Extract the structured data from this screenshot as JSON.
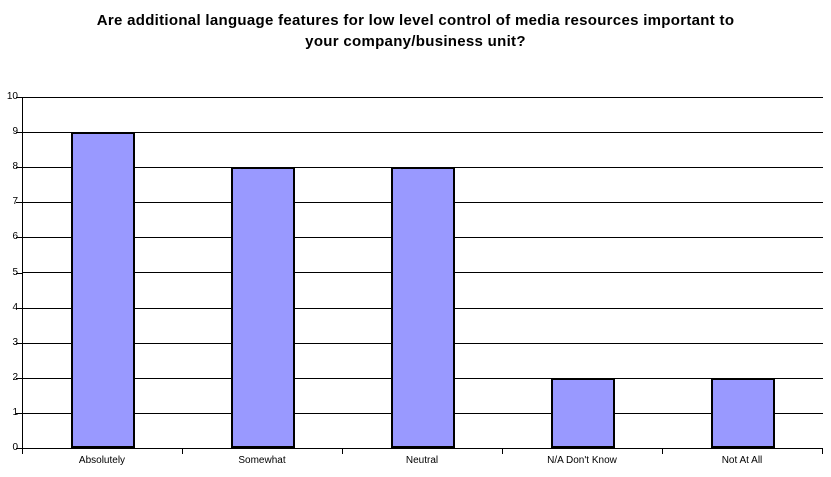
{
  "chart_data": {
    "type": "bar",
    "title": "Are additional language features for low level control of media resources important to your company/business unit?",
    "categories": [
      "Absolutely",
      "Somewhat",
      "Neutral",
      "N/A Don't Know",
      "Not At All"
    ],
    "values": [
      9,
      8,
      8,
      2,
      2
    ],
    "xlabel": "",
    "ylabel": "",
    "ylim": [
      0,
      10
    ],
    "yticks": [
      0,
      1,
      2,
      3,
      4,
      5,
      6,
      7,
      8,
      9,
      10
    ],
    "grid": true,
    "legend": false,
    "bar_color": "#9999FF",
    "bar_border_color": "#000000",
    "gridline_color": "#000000",
    "axis_color": "#000000",
    "text_color": "#000000",
    "background_color": "#FFFFFF"
  }
}
